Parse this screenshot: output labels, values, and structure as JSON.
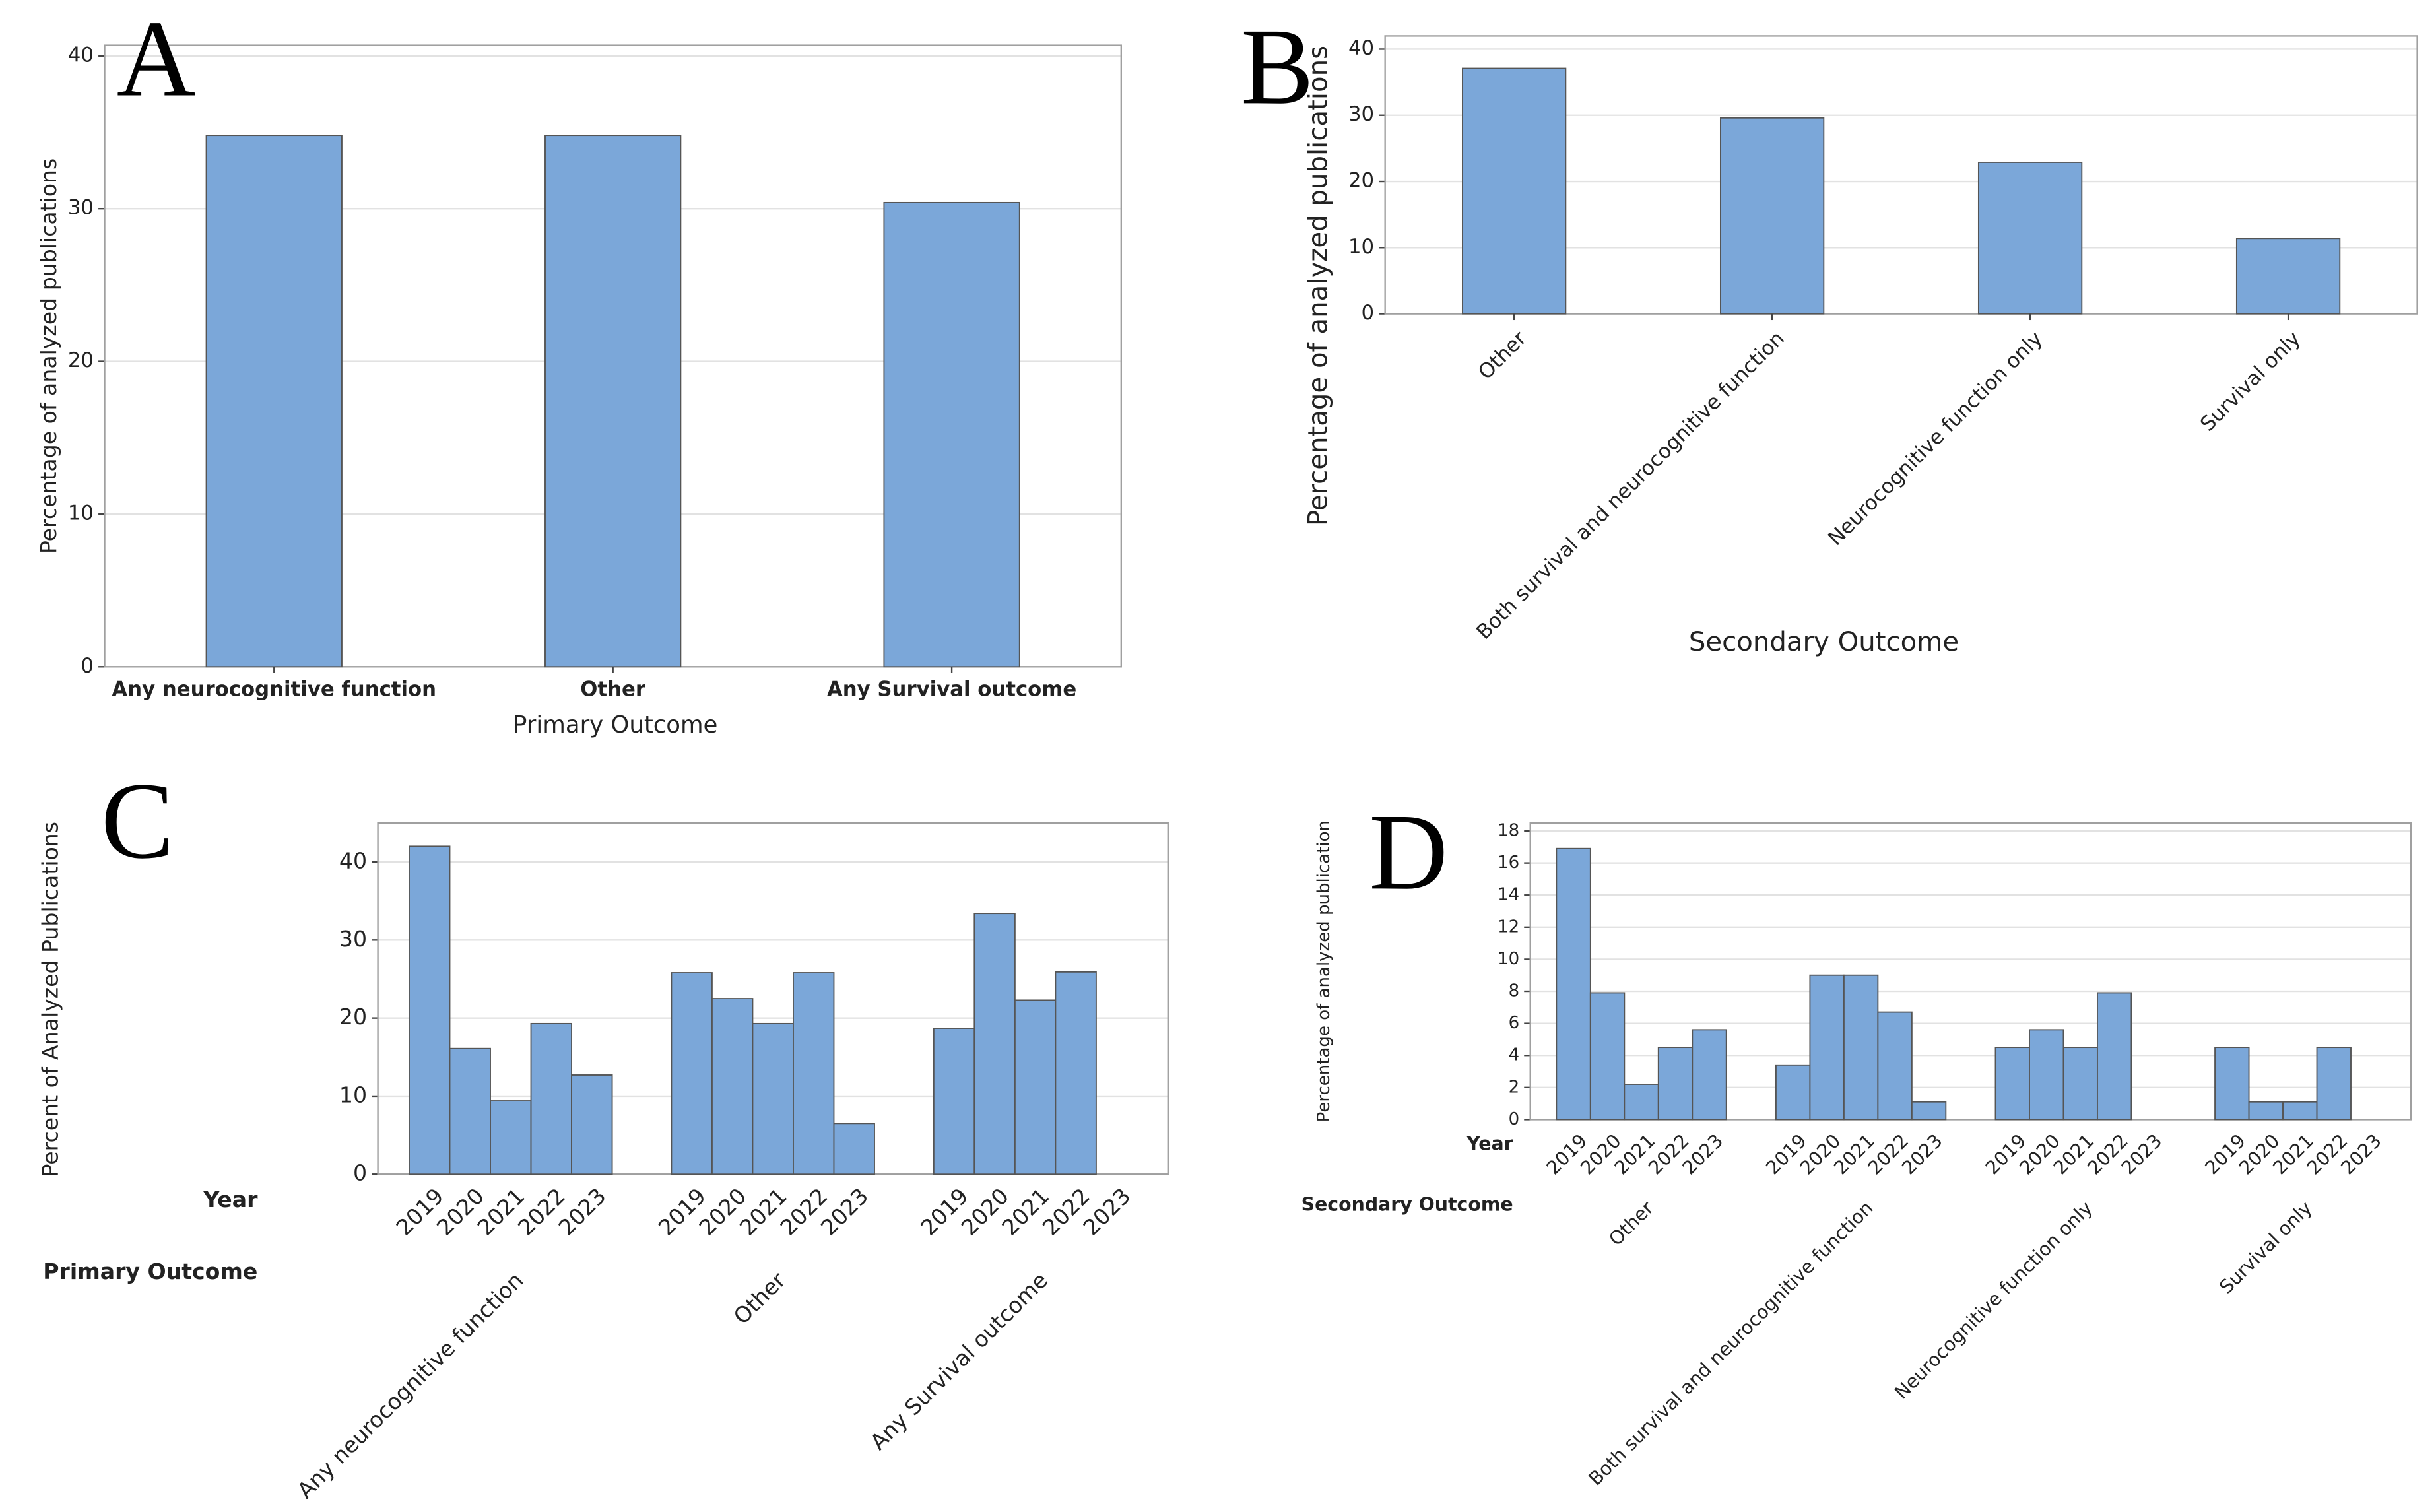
{
  "chart_data": [
    {
      "type": "bar",
      "label": "A",
      "x_label": "Primary Outcome",
      "y_label": "Percentage of analyzed publications",
      "categories": [
        "Any neurocognitive function",
        "Other",
        "Any Survival outcome"
      ],
      "values": [
        34.8,
        34.8,
        30.4
      ],
      "color": "#7ba7d9",
      "ylim": [
        0,
        40.7
      ],
      "yticks": [
        0,
        10,
        20,
        30,
        40
      ],
      "grid": true
    },
    {
      "type": "bar",
      "label": "B",
      "x_label": "Secondary Outcome",
      "y_label": "Percentage of analyzed publications",
      "categories": [
        "Other",
        "Both survival and neurocognitive function",
        "Neurocognitive function only",
        "Survival only"
      ],
      "values": [
        37.1,
        29.6,
        22.9,
        11.4
      ],
      "color": "#7ba7d9",
      "ylim": [
        0,
        42
      ],
      "yticks": [
        0,
        10,
        20,
        30,
        40
      ],
      "grid": true
    },
    {
      "type": "bar",
      "label": "C",
      "y_label": "Percent of Analyzed Publications",
      "category_label": "Year",
      "group_label": "Primary Outcome",
      "categories": [
        "2019",
        "2020",
        "2021",
        "2022",
        "2023"
      ],
      "groups": [
        {
          "name": "Any neurocognitive function",
          "values": [
            42.0,
            16.1,
            9.4,
            19.3,
            12.7
          ]
        },
        {
          "name": "Other",
          "values": [
            25.8,
            22.5,
            19.3,
            25.8,
            6.5
          ]
        },
        {
          "name": "Any Survival outcome",
          "values": [
            18.7,
            33.4,
            22.3,
            25.9,
            0
          ]
        }
      ],
      "color": "#7ba7d9",
      "ylim": [
        0,
        45
      ],
      "yticks": [
        0,
        10,
        20,
        30,
        40
      ],
      "grid": true
    },
    {
      "type": "bar",
      "label": "D",
      "y_label": "Percentage of analyzed publication",
      "category_label": "Year",
      "group_label": "Secondary Outcome",
      "categories": [
        "2019",
        "2020",
        "2021",
        "2022",
        "2023"
      ],
      "groups": [
        {
          "name": "Other",
          "values": [
            16.9,
            7.9,
            2.2,
            4.5,
            5.6
          ]
        },
        {
          "name": "Both survival and neurocognitive function",
          "values": [
            3.4,
            9.0,
            9.0,
            6.7,
            1.1
          ]
        },
        {
          "name": "Neurocognitive function only",
          "values": [
            4.5,
            5.6,
            4.5,
            7.9,
            0
          ]
        },
        {
          "name": "Survival only",
          "values": [
            4.5,
            1.1,
            1.1,
            4.5,
            0
          ]
        }
      ],
      "color": "#7ba7d9",
      "ylim": [
        0,
        18.5
      ],
      "yticks": [
        0,
        2,
        4,
        6,
        8,
        10,
        12,
        14,
        16,
        18
      ],
      "grid": true
    }
  ]
}
